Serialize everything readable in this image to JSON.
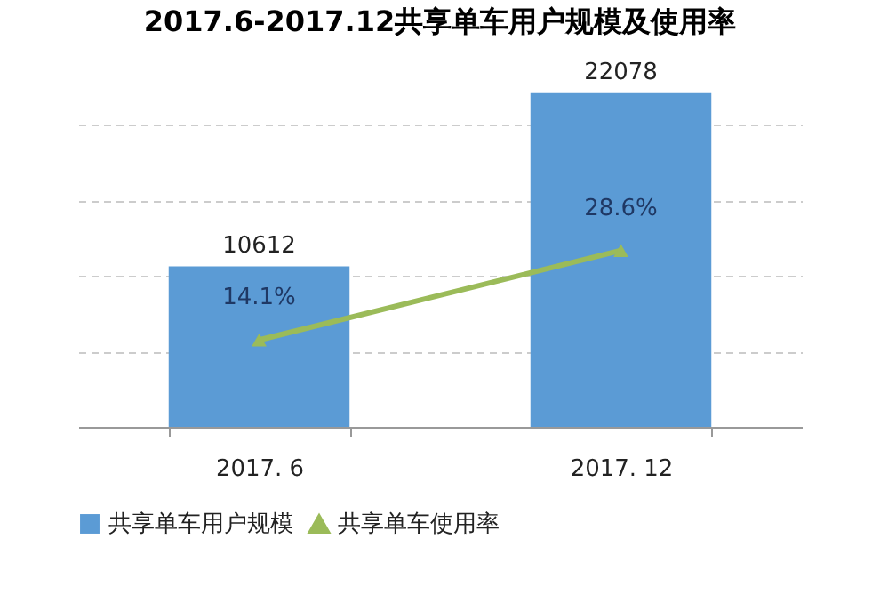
{
  "chart_data": {
    "type": "bar",
    "title": "2017.6-2017.12共享单车用户规模及使用率",
    "categories": [
      "2017. 6",
      "2017. 12"
    ],
    "series": [
      {
        "name": "共享单车用户规模",
        "color": "#5b9bd5",
        "values": [
          10612,
          22078
        ],
        "value_labels": [
          "10612",
          "22078"
        ]
      },
      {
        "name": "共享单车使用率",
        "type": "line",
        "axis": "y2",
        "color": "#9bbb59",
        "values": [
          14.1,
          28.6
        ],
        "value_labels": [
          "14.1%",
          "28.6%"
        ]
      }
    ],
    "grid": "y",
    "legend": "bottom",
    "marker": "triangle",
    "tick_labels": "x"
  }
}
